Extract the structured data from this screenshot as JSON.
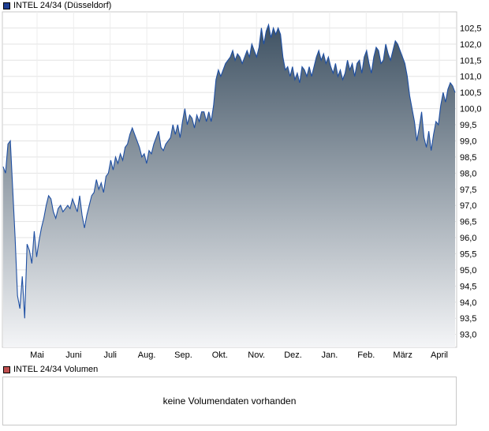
{
  "price_legend": {
    "label": "INTEL 24/34 (Düsseldorf)",
    "color": "#1e3f93"
  },
  "volume_legend": {
    "label": "INTEL 24/34 Volumen",
    "color": "#c05050"
  },
  "volume_panel": {
    "message": "keine Volumendaten vorhanden"
  },
  "chart_data": {
    "type": "area",
    "title": "INTEL 24/34 (Düsseldorf)",
    "xlabel": "",
    "ylabel": "",
    "ylim": [
      92.6,
      103.0
    ],
    "y_ticks": [
      "93,0",
      "93,5",
      "94,0",
      "94,5",
      "95,0",
      "95,5",
      "96,0",
      "96,5",
      "97,0",
      "97,5",
      "98,0",
      "98,5",
      "99,0",
      "99,5",
      "100,0",
      "100,5",
      "101,0",
      "101,5",
      "102,0",
      "102,5"
    ],
    "x_ticks": [
      "Mai",
      "Juni",
      "Juli",
      "Aug.",
      "Sep.",
      "Okt.",
      "Nov.",
      "Dez.",
      "Jan.",
      "Feb.",
      "März",
      "April"
    ],
    "grid": true,
    "line_color": "#1e4fa3",
    "fill_top_color": "#3f5263",
    "fill_bottom_color": "#f4f5f7",
    "series": [
      {
        "values": [
          98.2,
          98.0,
          98.9,
          99.0,
          97.5,
          96.0,
          94.2,
          93.8,
          94.8,
          93.5,
          95.8,
          95.6,
          95.2,
          96.2,
          95.4,
          95.9,
          96.3,
          96.6,
          97.0,
          97.3,
          97.2,
          96.8,
          96.6,
          96.9,
          97.0,
          96.8,
          96.9,
          97.0,
          96.9,
          97.2,
          97.0,
          96.8,
          97.3,
          96.7,
          96.3,
          96.7,
          97.0,
          97.3,
          97.4,
          97.8,
          97.5,
          97.7,
          97.4,
          97.9,
          98.0,
          98.4,
          98.1,
          98.5,
          98.3,
          98.6,
          98.4,
          98.8,
          98.9,
          99.2,
          99.4,
          99.2,
          99.0,
          98.8,
          98.5,
          98.6,
          98.3,
          98.7,
          98.6,
          98.9,
          99.1,
          99.3,
          98.8,
          98.7,
          98.9,
          99.0,
          99.1,
          99.5,
          99.2,
          99.5,
          99.1,
          99.6,
          100.0,
          99.5,
          99.8,
          99.7,
          99.4,
          99.8,
          99.6,
          99.9,
          99.9,
          99.6,
          99.9,
          99.6,
          100.1,
          100.9,
          101.2,
          101.0,
          101.2,
          101.4,
          101.5,
          101.6,
          101.8,
          101.5,
          101.7,
          101.6,
          101.4,
          101.6,
          101.8,
          101.6,
          102.0,
          101.8,
          101.6,
          101.9,
          102.5,
          102.0,
          102.4,
          102.6,
          102.2,
          102.5,
          102.3,
          102.5,
          102.3,
          101.6,
          101.2,
          101.3,
          101.0,
          101.3,
          100.9,
          101.1,
          100.8,
          101.3,
          101.2,
          101.0,
          101.3,
          101.0,
          101.3,
          101.6,
          101.8,
          101.5,
          101.7,
          101.4,
          101.6,
          101.3,
          101.1,
          101.4,
          101.0,
          101.2,
          100.9,
          101.1,
          101.5,
          101.2,
          101.4,
          101.0,
          101.4,
          101.5,
          101.1,
          101.6,
          101.8,
          101.4,
          101.1,
          101.6,
          101.9,
          101.8,
          101.4,
          101.5,
          102.0,
          101.7,
          101.5,
          101.8,
          102.1,
          102.0,
          101.8,
          101.6,
          101.4,
          101.0,
          100.4,
          100.0,
          99.6,
          99.0,
          99.4,
          99.9,
          99.1,
          98.8,
          99.3,
          98.7,
          99.2,
          99.6,
          99.5,
          100.1,
          100.5,
          100.2,
          100.6,
          100.8,
          100.7,
          100.5
        ]
      }
    ]
  }
}
